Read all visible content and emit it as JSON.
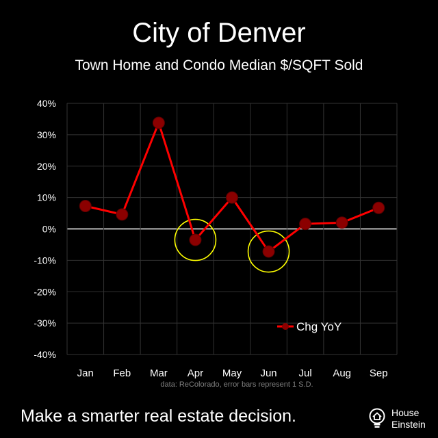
{
  "header": {
    "title": "City of Denver",
    "subtitle": "Town Home and Condo Median $/SQFT Sold"
  },
  "chart_data": {
    "type": "line",
    "categories": [
      "Jan",
      "Feb",
      "Mar",
      "Apr",
      "May",
      "Jun",
      "Jul",
      "Aug",
      "Sep"
    ],
    "series": [
      {
        "name": "Chg YoY",
        "values": [
          7.3,
          4.6,
          33.8,
          -3.5,
          10.0,
          -7.2,
          1.6,
          2.0,
          6.7
        ],
        "color": "#ff0000"
      }
    ],
    "ylim": [
      -40,
      40
    ],
    "y_ticks": [
      -40,
      -30,
      -20,
      -10,
      0,
      10,
      20,
      30,
      40
    ],
    "y_tick_labels": [
      "-40%",
      "-30%",
      "-20%",
      "-10%",
      "0%",
      "10%",
      "20%",
      "30%",
      "40%"
    ],
    "grid": true,
    "legend_position": "bottom-right",
    "highlighted_categories": [
      "Apr",
      "Jun"
    ],
    "highlight_color": "#ffff00",
    "note": "data: ReColorado,  error bars represent 1 S.D."
  },
  "footer": {
    "tagline": "Make a smarter real estate decision.",
    "brand_line1": "House",
    "brand_line2": "Einstein"
  }
}
